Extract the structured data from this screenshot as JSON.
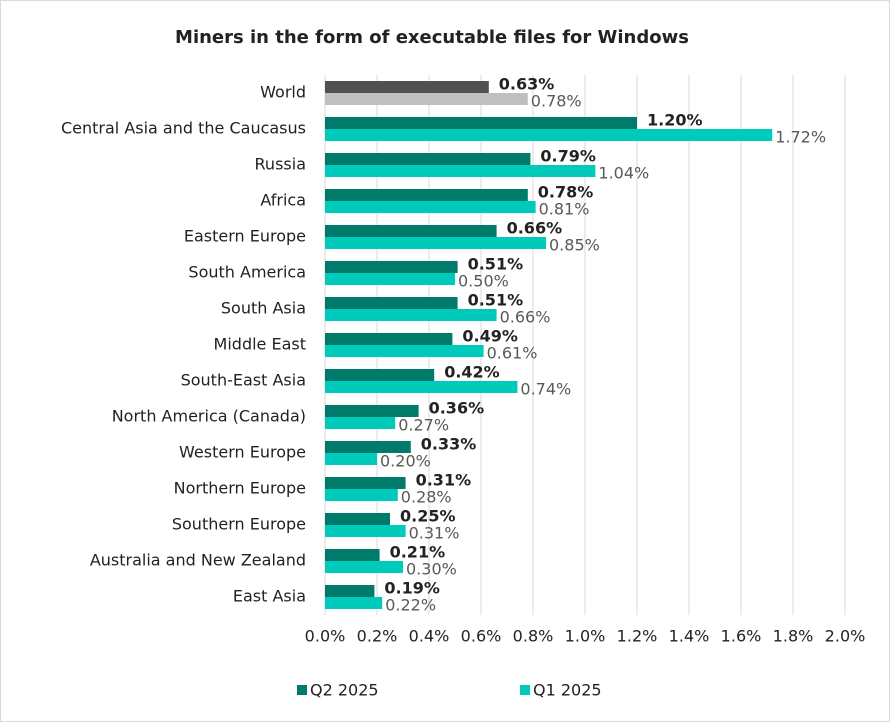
{
  "chart_data": {
    "type": "hbar",
    "title": "Miners in the form of executable files for Windows",
    "categories": [
      "World",
      "Central Asia and the Caucasus",
      "Russia",
      "Africa",
      "Eastern Europe",
      "South America",
      "South Asia",
      "Middle East",
      "South-East Asia",
      "North America (Canada)",
      "Western Europe",
      "Northern Europe",
      "Southern Europe",
      "Australia and New Zealand",
      "East Asia"
    ],
    "series": [
      {
        "name": "Q2 2025",
        "color": "#007a6b",
        "colors": [
          "#505050",
          "#007a6b",
          "#007a6b",
          "#007a6b",
          "#007a6b",
          "#007a6b",
          "#007a6b",
          "#007a6b",
          "#007a6b",
          "#007a6b",
          "#007a6b",
          "#007a6b",
          "#007a6b",
          "#007a6b",
          "#007a6b"
        ],
        "values": [
          0.63,
          1.2,
          0.79,
          0.78,
          0.66,
          0.51,
          0.51,
          0.49,
          0.42,
          0.36,
          0.33,
          0.31,
          0.25,
          0.21,
          0.19
        ],
        "value_labels": [
          "0.63%",
          "1.20%",
          "0.79%",
          "0.78%",
          "0.66%",
          "0.51%",
          "0.51%",
          "0.49%",
          "0.42%",
          "0.36%",
          "0.33%",
          "0.31%",
          "0.25%",
          "0.21%",
          "0.19%"
        ]
      },
      {
        "name": "Q1 2025",
        "color": "#00cbbb",
        "colors": [
          "#bfbfbf",
          "#00cbbb",
          "#00cbbb",
          "#00cbbb",
          "#00cbbb",
          "#00cbbb",
          "#00cbbb",
          "#00cbbb",
          "#00cbbb",
          "#00cbbb",
          "#00cbbb",
          "#00cbbb",
          "#00cbbb",
          "#00cbbb",
          "#00cbbb"
        ],
        "values": [
          0.78,
          1.72,
          1.04,
          0.81,
          0.85,
          0.5,
          0.66,
          0.61,
          0.74,
          0.27,
          0.2,
          0.28,
          0.31,
          0.3,
          0.22
        ],
        "value_labels": [
          "0.78%",
          "1.72%",
          "1.04%",
          "0.81%",
          "0.85%",
          "0.50%",
          "0.66%",
          "0.61%",
          "0.74%",
          "0.27%",
          "0.20%",
          "0.28%",
          "0.31%",
          "0.30%",
          "0.22%"
        ]
      }
    ],
    "xlim": [
      0,
      2
    ],
    "xticks": [
      {
        "value": 0,
        "label": "0.0%"
      },
      {
        "value": 0.2,
        "label": "0.2%"
      },
      {
        "value": 0.4,
        "label": "0.4%"
      },
      {
        "value": 0.6,
        "label": "0.6%"
      },
      {
        "value": 0.8,
        "label": "0.8%"
      },
      {
        "value": 1,
        "label": "1.0%"
      },
      {
        "value": 1.2,
        "label": "1.2%"
      },
      {
        "value": 1.4,
        "label": "1.4%"
      },
      {
        "value": 1.6,
        "label": "1.6%"
      },
      {
        "value": 1.8,
        "label": "1.8%"
      },
      {
        "value": 2,
        "label": "2.0%"
      }
    ],
    "grid": true,
    "legend": "bottom"
  }
}
